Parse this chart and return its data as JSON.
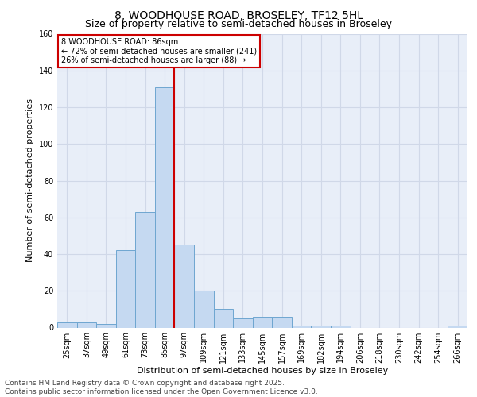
{
  "title": "8, WOODHOUSE ROAD, BROSELEY, TF12 5HL",
  "subtitle": "Size of property relative to semi-detached houses in Broseley",
  "xlabel": "Distribution of semi-detached houses by size in Broseley",
  "ylabel": "Number of semi-detached properties",
  "categories": [
    "25sqm",
    "37sqm",
    "49sqm",
    "61sqm",
    "73sqm",
    "85sqm",
    "97sqm",
    "109sqm",
    "121sqm",
    "133sqm",
    "145sqm",
    "157sqm",
    "169sqm",
    "182sqm",
    "194sqm",
    "206sqm",
    "218sqm",
    "230sqm",
    "242sqm",
    "254sqm",
    "266sqm"
  ],
  "values": [
    3,
    3,
    2,
    42,
    63,
    131,
    45,
    20,
    10,
    5,
    6,
    6,
    1,
    1,
    1,
    0,
    0,
    0,
    0,
    0,
    1
  ],
  "bar_color": "#c5d9f1",
  "bar_edge_color": "#6ea6d0",
  "vline_color": "#cc0000",
  "vline_position": 5.5,
  "annotation_title": "8 WOODHOUSE ROAD: 86sqm",
  "annotation_line1": "← 72% of semi-detached houses are smaller (241)",
  "annotation_line2": "26% of semi-detached houses are larger (88) →",
  "annotation_box_color": "#ffffff",
  "annotation_box_edge": "#cc0000",
  "ylim": [
    0,
    160
  ],
  "yticks": [
    0,
    20,
    40,
    60,
    80,
    100,
    120,
    140,
    160
  ],
  "grid_color": "#d0d8e8",
  "background_color": "#e8eef8",
  "footer_line1": "Contains HM Land Registry data © Crown copyright and database right 2025.",
  "footer_line2": "Contains public sector information licensed under the Open Government Licence v3.0.",
  "title_fontsize": 10,
  "subtitle_fontsize": 9,
  "axis_label_fontsize": 8,
  "tick_fontsize": 7,
  "footer_fontsize": 6.5
}
